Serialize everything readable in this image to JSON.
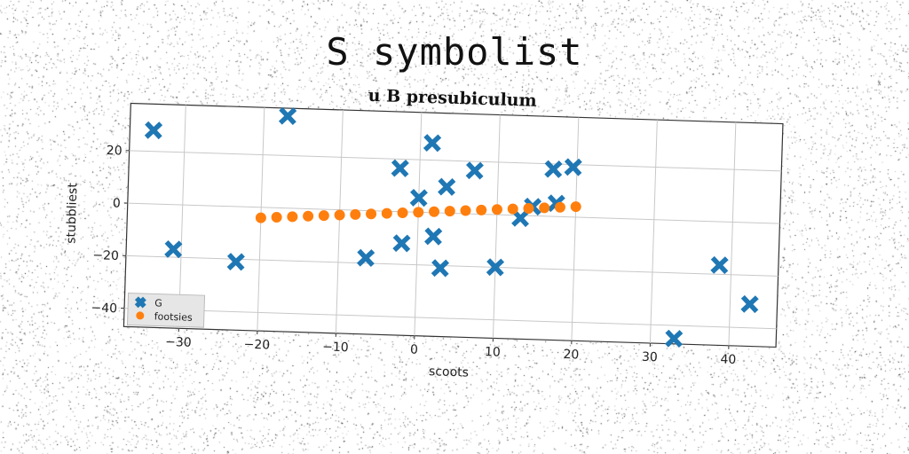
{
  "page": {
    "title": "S symbolist"
  },
  "chart_data": {
    "type": "scatter",
    "subtitle": "u B presubiculum",
    "xlabel": "scoots",
    "ylabel": "stubbliest",
    "xlim": [
      -37,
      46
    ],
    "ylim": [
      -47,
      38
    ],
    "xticks": [
      -30,
      -20,
      -10,
      0,
      10,
      20,
      30,
      40
    ],
    "yticks": [
      -40,
      -20,
      0,
      20
    ],
    "grid": true,
    "legend_position": "lower-left",
    "series": [
      {
        "name": "G",
        "marker": "x",
        "color": "#1f77b4",
        "points": [
          {
            "x": -34,
            "y": 28
          },
          {
            "x": -17,
            "y": 35
          },
          {
            "x": -31,
            "y": -17
          },
          {
            "x": -23,
            "y": -21
          },
          {
            "x": -6.5,
            "y": -18
          },
          {
            "x": -2.5,
            "y": 16.5
          },
          {
            "x": 1.5,
            "y": 26.5
          },
          {
            "x": -2,
            "y": -12
          },
          {
            "x": 0,
            "y": 5.5
          },
          {
            "x": 2,
            "y": -9
          },
          {
            "x": 3,
            "y": -21
          },
          {
            "x": 3.5,
            "y": 10
          },
          {
            "x": 7,
            "y": 16.5
          },
          {
            "x": 10,
            "y": -20
          },
          {
            "x": 13,
            "y": -1
          },
          {
            "x": 14.5,
            "y": 3.5
          },
          {
            "x": 17,
            "y": 18
          },
          {
            "x": 17.5,
            "y": 5
          },
          {
            "x": 19.5,
            "y": 19
          },
          {
            "x": 33,
            "y": -45
          },
          {
            "x": 38.5,
            "y": -16.5
          },
          {
            "x": 42.5,
            "y": -31
          }
        ]
      },
      {
        "name": "footsies",
        "marker": "o",
        "color": "#ff7f0e",
        "points": [
          {
            "x": -20,
            "y": -4
          },
          {
            "x": -18,
            "y": -3.6
          },
          {
            "x": -16,
            "y": -3.2
          },
          {
            "x": -14,
            "y": -2.8
          },
          {
            "x": -12,
            "y": -2.4
          },
          {
            "x": -10,
            "y": -2
          },
          {
            "x": -8,
            "y": -1.6
          },
          {
            "x": -6,
            "y": -1.2
          },
          {
            "x": -4,
            "y": -0.8
          },
          {
            "x": -2,
            "y": -0.4
          },
          {
            "x": 0,
            "y": 0
          },
          {
            "x": 2,
            "y": 0.4
          },
          {
            "x": 4,
            "y": 0.8
          },
          {
            "x": 6,
            "y": 1.2
          },
          {
            "x": 8,
            "y": 1.6
          },
          {
            "x": 10,
            "y": 2
          },
          {
            "x": 12,
            "y": 2.4
          },
          {
            "x": 14,
            "y": 2.8
          },
          {
            "x": 16,
            "y": 3.2
          },
          {
            "x": 18,
            "y": 3.6
          },
          {
            "x": 20,
            "y": 4
          }
        ]
      }
    ]
  }
}
